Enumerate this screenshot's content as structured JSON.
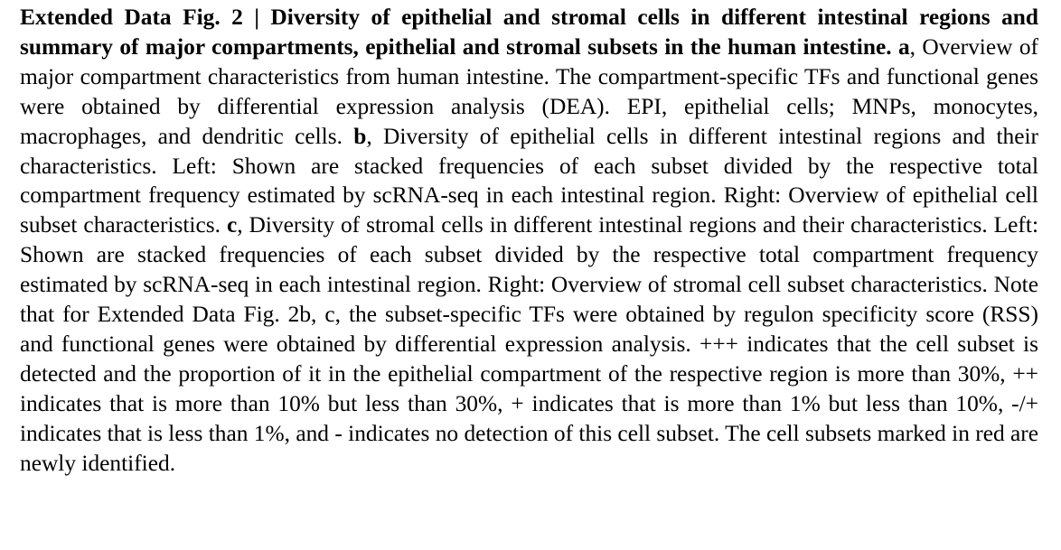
{
  "caption": {
    "label": "Extended Data Fig. 2 | Diversity of epithelial and stromal cells in different intestinal regions and summary of major compartments, epithelial and stromal subsets in the human intestine.",
    "panel_a_letter": "a",
    "panel_a_text": ", Overview of major compartment characteristics from human intestine. The compartment-specific TFs and functional genes were obtained by differential expression analysis (DEA). EPI, epithelial cells; MNPs, monocytes, macrophages, and dendritic cells.",
    "panel_b_letter": "b",
    "panel_b_text": ", Diversity of epithelial cells in different intestinal regions and their characteristics. Left: Shown are stacked frequencies of each subset divided by the respective total compartment frequency estimated by scRNA-seq in each intestinal region. Right: Overview of epithelial cell subset characteristics.",
    "panel_c_letter": "c",
    "panel_c_text": ", Diversity of stromal cells in different intestinal regions and their characteristics. Left: Shown are stacked frequencies of each subset divided by the respective total compartment frequency estimated by scRNA-seq in each intestinal region. Right: Overview of stromal cell subset characteristics. Note that for Extended Data Fig. 2b, c, the subset-specific TFs were obtained by regulon specificity score (RSS) and functional genes were obtained by differential expression analysis. +++ indicates that the cell subset is detected and the proportion of it in the epithelial compartment of the respective region is more than 30%, ++ indicates that is more than 10% but less than 30%, + indicates that is more than 1% but less than 10%, -/+ indicates that is less than 1%, and - indicates no detection of this cell subset. The cell subsets marked in red are newly identified."
  }
}
